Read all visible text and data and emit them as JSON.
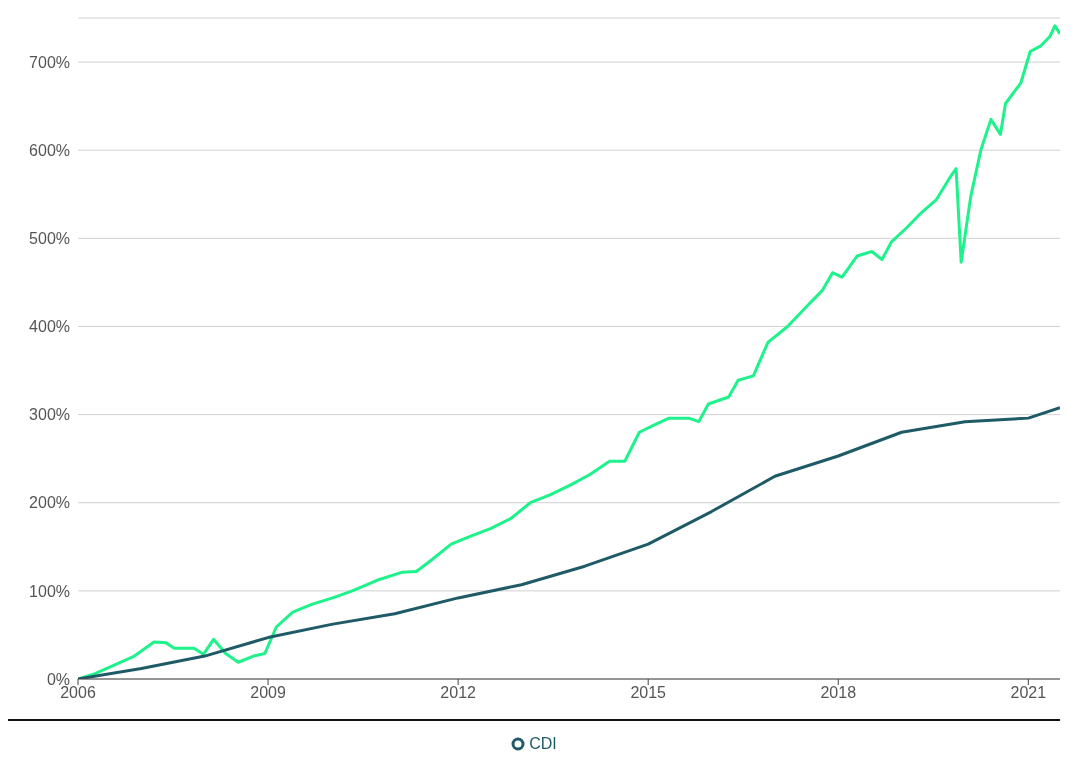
{
  "chart_data": {
    "type": "line",
    "xlim": [
      2006,
      2021.5
    ],
    "xticks": [
      2006,
      2009,
      2012,
      2015,
      2018,
      2021
    ],
    "ylim": [
      0,
      750
    ],
    "yticks": [
      {
        "value": 0,
        "label": "0%"
      },
      {
        "value": 100,
        "label": "100%"
      },
      {
        "value": 200,
        "label": "200%"
      },
      {
        "value": 300,
        "label": "300%"
      },
      {
        "value": 400,
        "label": "400%"
      },
      {
        "value": 500,
        "label": "500%"
      },
      {
        "value": 600,
        "label": "600%"
      },
      {
        "value": 700,
        "label": "700%"
      }
    ],
    "grid": "y",
    "legend": "bottom",
    "marker": "none",
    "line_style": "solid",
    "series": [
      {
        "color": "#1ef28a",
        "x": [
          2006,
          2006.27,
          2006.58,
          2006.89,
          2007.2,
          2007.39,
          2007.52,
          2007.83,
          2007.98,
          2008.14,
          2008.33,
          2008.53,
          2008.77,
          2008.95,
          2009.13,
          2009.39,
          2009.7,
          2010.02,
          2010.33,
          2010.72,
          2011.11,
          2011.34,
          2011.58,
          2011.89,
          2012.2,
          2012.52,
          2012.83,
          2013.14,
          2013.45,
          2013.77,
          2014.08,
          2014.39,
          2014.63,
          2014.86,
          2015.09,
          2015.33,
          2015.64,
          2015.8,
          2015.95,
          2016.27,
          2016.42,
          2016.66,
          2016.89,
          2017.2,
          2017.52,
          2017.75,
          2017.91,
          2018.06,
          2018.3,
          2018.53,
          2018.69,
          2018.84,
          2019.08,
          2019.31,
          2019.55,
          2019.78,
          2019.86,
          2019.94,
          2020.09,
          2020.25,
          2020.41,
          2020.56,
          2020.64,
          2020.88,
          2021.03,
          2021.19,
          2021.34,
          2021.42,
          2021.5
        ],
        "values": [
          0,
          6,
          16,
          26,
          42,
          41,
          35,
          35,
          28,
          45,
          29,
          19,
          26,
          29,
          59,
          76,
          85,
          92,
          100,
          112,
          121,
          122,
          135,
          153,
          162,
          171,
          182,
          200,
          209,
          220,
          232,
          247,
          247,
          280,
          288,
          296,
          296,
          292,
          312,
          320,
          339,
          344,
          382,
          400,
          424,
          441,
          461,
          456,
          480,
          485,
          476,
          496,
          512,
          529,
          544,
          571,
          579,
          473,
          547,
          600,
          635,
          618,
          653,
          676,
          712,
          718,
          729,
          741,
          732
        ]
      },
      {
        "name": "CDI",
        "color": "#1f5b66",
        "x": [
          2006,
          2007,
          2008,
          2009,
          2010,
          2011,
          2012,
          2013,
          2014,
          2015,
          2016,
          2017,
          2018,
          2019,
          2020,
          2021,
          2021.5
        ],
        "values": [
          0,
          12,
          26,
          47,
          62,
          74,
          92,
          107,
          128,
          153,
          190,
          230,
          253,
          280,
          292,
          296,
          308
        ]
      }
    ]
  }
}
